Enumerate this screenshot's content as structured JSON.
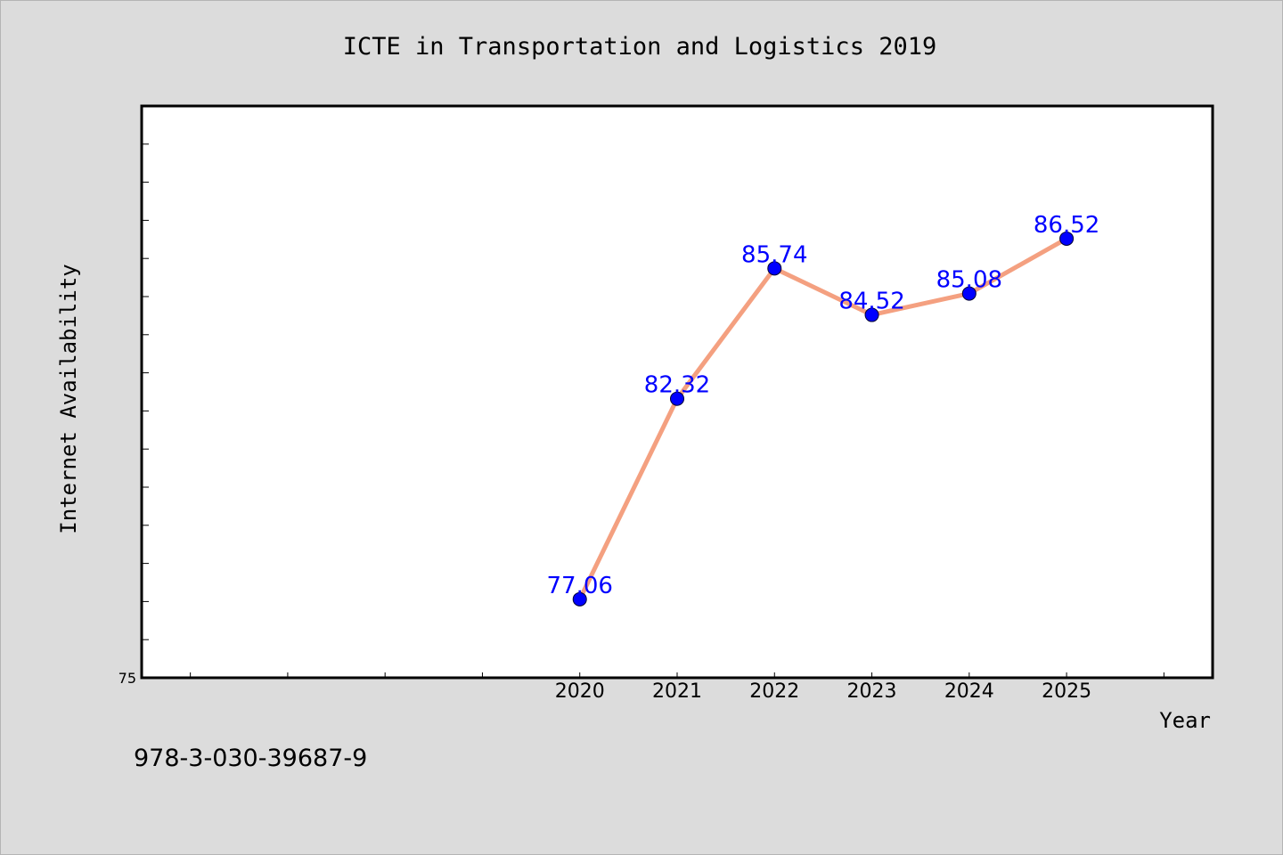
{
  "chart_data": {
    "type": "line",
    "title": "ICTE in Transportation and Logistics 2019",
    "xlabel": "Year",
    "ylabel": "Internet Availability",
    "x": [
      "2020",
      "2021",
      "2022",
      "2023",
      "2024",
      "2025"
    ],
    "xlim": [
      2015.5,
      2026.5
    ],
    "ylim": [
      75,
      90
    ],
    "y_tick_labels": [
      "75"
    ],
    "grid": false,
    "series": [
      {
        "values": [
          77.06,
          82.32,
          85.74,
          84.52,
          85.08,
          86.52
        ],
        "line_color": "#f4a080",
        "marker_color": "#0000ff",
        "label_color": "#0000ff"
      }
    ]
  },
  "footer": {
    "isbn": "978-3-030-39687-9"
  }
}
